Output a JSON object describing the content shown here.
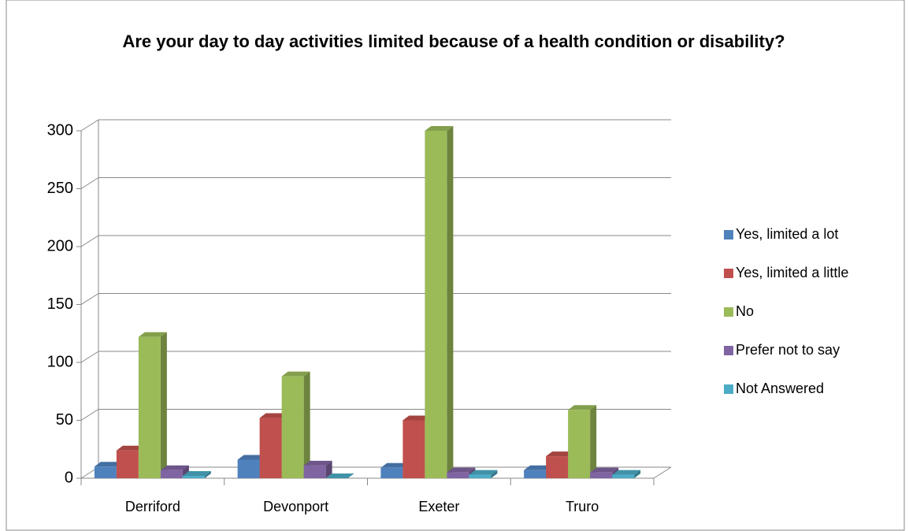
{
  "chart_data": {
    "type": "bar3d",
    "title": "Are your day to day activities limited because of a health condition or disability?",
    "categories": [
      "Derriford",
      "Devonport",
      "Exeter",
      "Truro"
    ],
    "series": [
      {
        "name": "Yes, limited a lot",
        "color": "#4f81bd",
        "values": [
          10,
          16,
          9,
          7
        ]
      },
      {
        "name": "Yes, limited a little",
        "color": "#c0504d",
        "values": [
          24,
          52,
          50,
          19
        ]
      },
      {
        "name": "No",
        "color": "#9bbb59",
        "values": [
          122,
          88,
          300,
          59
        ]
      },
      {
        "name": "Prefer not to say",
        "color": "#8064a2",
        "values": [
          7,
          11,
          5,
          5
        ]
      },
      {
        "name": "Not Answered",
        "color": "#4bacc6",
        "values": [
          2,
          0,
          3,
          3
        ]
      }
    ],
    "ylim": [
      0,
      300
    ],
    "yticks": [
      0,
      50,
      100,
      150,
      200,
      250,
      300
    ],
    "grid": true,
    "legend": "right"
  }
}
